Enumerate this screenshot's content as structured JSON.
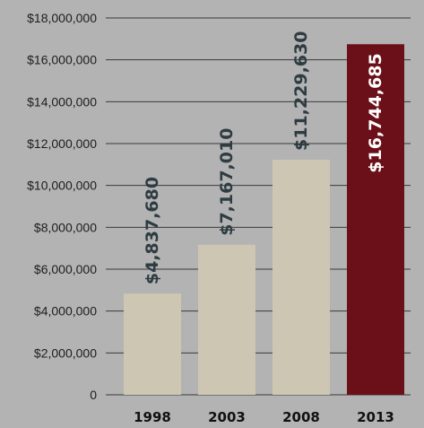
{
  "chart_data": {
    "type": "bar",
    "title": "",
    "xlabel": "",
    "ylabel": "",
    "categories": [
      "1998",
      "2003",
      "2008",
      "2013"
    ],
    "values": [
      4837680,
      7167010,
      11229630,
      16744685
    ],
    "value_labels": [
      "$4,837,680",
      "$7,167,010",
      "$11,229,630",
      "$16,744,685"
    ],
    "ylim": [
      0,
      18000000
    ],
    "yticks": [
      0,
      2000000,
      4000000,
      6000000,
      8000000,
      10000000,
      12000000,
      14000000,
      16000000,
      18000000
    ],
    "ytick_labels": [
      "0",
      "$2,000,000",
      "$4,000,000",
      "$6,000,000",
      "$8,000,000",
      "$10,000,000",
      "$12,000,000",
      "$14,000,000",
      "$16,000,000",
      "$18,000,000"
    ],
    "grid": true,
    "legend": "none",
    "colors": {
      "background": "#b2b3b2",
      "bar": "#ccc6b3",
      "highlight_bar": "#6b1018",
      "grid": "#3a3a3a",
      "label_dark": "#2e3c42",
      "label_light": "#ffffff"
    },
    "highlight_index": 3
  }
}
